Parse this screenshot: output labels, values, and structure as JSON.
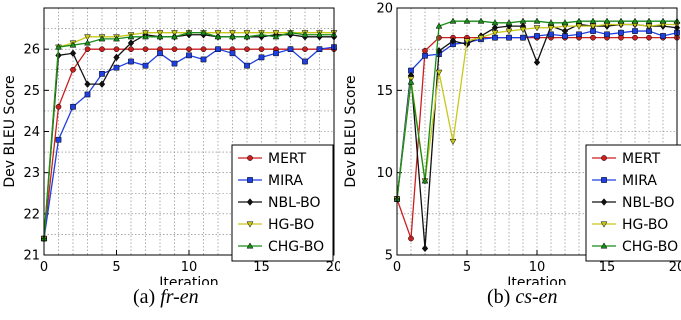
{
  "colors": {
    "MERT": "#cc1f1f",
    "MIRA": "#1f3fe0",
    "NBL-BO": "#111111",
    "HG-BO": "#c8c81a",
    "CHG-BO": "#1a8c1a"
  },
  "markers": {
    "MERT": "circle",
    "MIRA": "square",
    "NBL-BO": "diamond",
    "HG-BO": "triangle-down",
    "CHG-BO": "triangle-up"
  },
  "chart_data": [
    {
      "type": "line",
      "caption_prefix": "(a)",
      "caption_name": "fr-en",
      "xlabel": "Iteration",
      "ylabel": "Dev BLEU Score",
      "xlim": [
        0,
        20
      ],
      "ylim": [
        21,
        27
      ],
      "xticks": [
        0,
        5,
        10,
        15,
        20
      ],
      "yticks": [
        21,
        22,
        23,
        24,
        25,
        26
      ],
      "grid": true,
      "legend_position": "bottom-right",
      "x": [
        0,
        1,
        2,
        3,
        4,
        5,
        6,
        7,
        8,
        9,
        10,
        11,
        12,
        13,
        14,
        15,
        16,
        17,
        18,
        19,
        20
      ],
      "series": [
        {
          "name": "MERT",
          "values": [
            21.4,
            24.6,
            25.5,
            26.0,
            26.0,
            26.0,
            26.0,
            26.0,
            26.0,
            26.0,
            26.0,
            26.0,
            26.0,
            26.0,
            26.0,
            26.0,
            26.0,
            26.0,
            26.0,
            26.0,
            26.0
          ]
        },
        {
          "name": "MIRA",
          "values": [
            21.4,
            23.8,
            24.6,
            24.9,
            25.4,
            25.55,
            25.7,
            25.6,
            25.9,
            25.65,
            25.85,
            25.75,
            26.0,
            25.9,
            25.6,
            25.8,
            25.9,
            26.0,
            25.7,
            26.0,
            26.05
          ]
        },
        {
          "name": "NBL-BO",
          "values": [
            21.4,
            25.85,
            25.9,
            25.15,
            25.15,
            25.8,
            26.15,
            26.35,
            26.3,
            26.3,
            26.35,
            26.35,
            26.3,
            26.3,
            26.3,
            26.3,
            26.35,
            26.35,
            26.3,
            26.3,
            26.3
          ]
        },
        {
          "name": "HG-BO",
          "values": [
            21.4,
            26.05,
            26.15,
            26.3,
            26.3,
            26.3,
            26.35,
            26.4,
            26.4,
            26.4,
            26.4,
            26.4,
            26.4,
            26.4,
            26.4,
            26.4,
            26.4,
            26.4,
            26.4,
            26.4,
            26.4
          ]
        },
        {
          "name": "CHG-BO",
          "values": [
            21.4,
            26.05,
            26.1,
            26.15,
            26.25,
            26.25,
            26.3,
            26.3,
            26.3,
            26.3,
            26.4,
            26.4,
            26.3,
            26.3,
            26.3,
            26.35,
            26.3,
            26.4,
            26.35,
            26.35,
            26.35
          ]
        }
      ]
    },
    {
      "type": "line",
      "caption_prefix": "(b)",
      "caption_name": "cs-en",
      "xlabel": "Iteration",
      "ylabel": "Dev BLEU Score",
      "xlim": [
        0,
        20
      ],
      "ylim": [
        5,
        20
      ],
      "xticks": [
        0,
        5,
        10,
        15,
        20
      ],
      "yticks": [
        5,
        10,
        15,
        20
      ],
      "grid": true,
      "legend_position": "bottom-right",
      "x": [
        0,
        1,
        2,
        3,
        4,
        5,
        6,
        7,
        8,
        9,
        10,
        11,
        12,
        13,
        14,
        15,
        16,
        17,
        18,
        19,
        20
      ],
      "series": [
        {
          "name": "MERT",
          "values": [
            8.4,
            6.0,
            17.4,
            18.2,
            18.2,
            18.2,
            18.2,
            18.2,
            18.2,
            18.2,
            18.2,
            18.2,
            18.2,
            18.2,
            18.2,
            18.2,
            18.2,
            18.2,
            18.2,
            18.2,
            18.2
          ]
        },
        {
          "name": "MIRA",
          "values": [
            8.4,
            16.2,
            17.1,
            17.2,
            17.8,
            17.9,
            18.1,
            18.2,
            18.2,
            18.2,
            18.3,
            18.4,
            18.3,
            18.4,
            18.6,
            18.4,
            18.5,
            18.6,
            18.6,
            18.3,
            18.5
          ]
        },
        {
          "name": "NBL-BO",
          "values": [
            8.4,
            15.9,
            5.4,
            17.4,
            18.0,
            17.8,
            18.3,
            18.8,
            18.9,
            18.9,
            16.7,
            18.9,
            18.6,
            19.0,
            18.9,
            18.9,
            19.0,
            19.0,
            18.9,
            18.9,
            18.8
          ]
        },
        {
          "name": "HG-BO",
          "values": [
            8.4,
            15.7,
            9.5,
            16.1,
            11.9,
            18.0,
            18.2,
            18.5,
            18.6,
            18.7,
            18.8,
            18.8,
            18.9,
            18.9,
            18.9,
            19.0,
            19.0,
            19.0,
            18.9,
            19.0,
            19.0
          ]
        },
        {
          "name": "CHG-BO",
          "values": [
            8.4,
            15.5,
            9.5,
            18.9,
            19.2,
            19.2,
            19.2,
            19.1,
            19.1,
            19.2,
            19.2,
            19.1,
            19.1,
            19.2,
            19.2,
            19.2,
            19.2,
            19.2,
            19.2,
            19.2,
            19.2
          ]
        }
      ]
    }
  ]
}
